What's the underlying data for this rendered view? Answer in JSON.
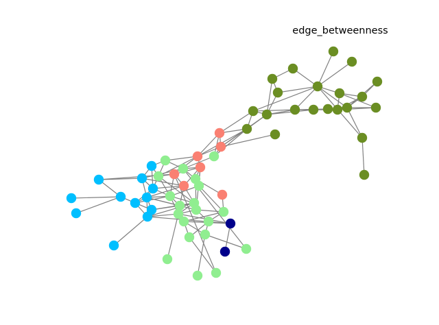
{
  "title": "edge_betweenness",
  "colors": {
    "edge": "#808080",
    "community_olive": "#6b8e23",
    "community_salmon": "#fa8072",
    "community_lightgreen": "#90ee90",
    "community_skyblue": "#00bfff",
    "community_navy": "#00008b"
  }
}
